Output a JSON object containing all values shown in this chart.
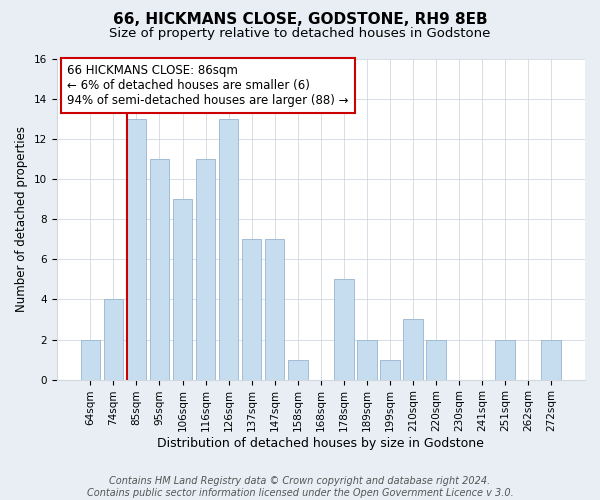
{
  "title": "66, HICKMANS CLOSE, GODSTONE, RH9 8EB",
  "subtitle": "Size of property relative to detached houses in Godstone",
  "xlabel": "Distribution of detached houses by size in Godstone",
  "ylabel": "Number of detached properties",
  "footer_line1": "Contains HM Land Registry data © Crown copyright and database right 2024.",
  "footer_line2": "Contains public sector information licensed under the Open Government Licence v 3.0.",
  "annotation_title": "66 HICKMANS CLOSE: 86sqm",
  "annotation_line2": "← 6% of detached houses are smaller (6)",
  "annotation_line3": "94% of semi-detached houses are larger (88) →",
  "bar_labels": [
    "64sqm",
    "74sqm",
    "85sqm",
    "95sqm",
    "106sqm",
    "116sqm",
    "126sqm",
    "137sqm",
    "147sqm",
    "158sqm",
    "168sqm",
    "178sqm",
    "189sqm",
    "199sqm",
    "210sqm",
    "220sqm",
    "230sqm",
    "241sqm",
    "251sqm",
    "262sqm",
    "272sqm"
  ],
  "bar_values": [
    2,
    4,
    13,
    11,
    9,
    11,
    13,
    7,
    7,
    1,
    0,
    5,
    2,
    1,
    3,
    2,
    0,
    0,
    2,
    0,
    2
  ],
  "bar_color": "#c6ddf0",
  "bar_edge_color": "#a0bcd4",
  "highlight_line_color": "#cc0000",
  "annotation_box_edge_color": "#cc0000",
  "ylim": [
    0,
    16
  ],
  "yticks": [
    0,
    2,
    4,
    6,
    8,
    10,
    12,
    14,
    16
  ],
  "background_color": "#e8eef4",
  "plot_bg_color": "#ffffff",
  "grid_color": "#d0d8e0",
  "title_fontsize": 11,
  "subtitle_fontsize": 9.5,
  "xlabel_fontsize": 9,
  "ylabel_fontsize": 8.5,
  "tick_fontsize": 7.5,
  "annotation_fontsize": 8.5,
  "footer_fontsize": 7
}
